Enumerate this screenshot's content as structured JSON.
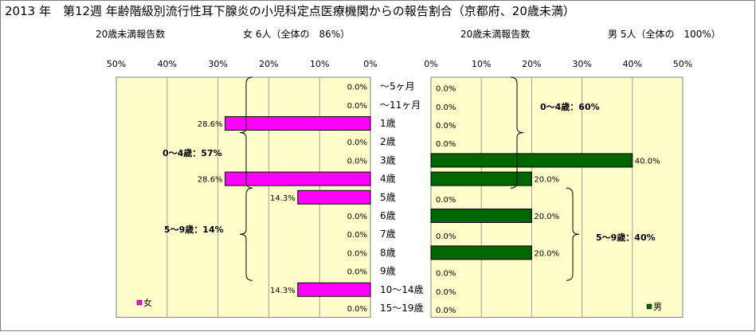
{
  "title": "2013 年　第12週 年齢階級別流行性耳下腺炎の小児科定点医療機関からの報告割合（京都府、20歳未満）",
  "subtitles": {
    "left_label": "20歳未満報告数",
    "left_value": "女 6人（全体の　86%）",
    "right_label": "20歳未満報告数",
    "right_value": "男 5人（全体の　100%）"
  },
  "colors": {
    "female": "#ff00ff",
    "male": "#006600",
    "plot_bg": "#ffffcc",
    "bar_edge": "#000000"
  },
  "chart_data": [
    {
      "type": "bar",
      "orientation": "horizontal-reversed",
      "categories": [
        "～5ヶ月",
        "～11ヶ月",
        "1歳",
        "2歳",
        "3歳",
        "4歳",
        "5歳",
        "6歳",
        "7歳",
        "8歳",
        "9歳",
        "10～14歳",
        "15～19歳"
      ],
      "series": [
        {
          "name": "女",
          "values": [
            0.0,
            0.0,
            28.6,
            0.0,
            0.0,
            28.6,
            14.3,
            0.0,
            0.0,
            0.0,
            0.0,
            14.3,
            0.0
          ]
        }
      ],
      "data_labels": [
        "0.0%",
        "0.0%",
        "28.6%",
        "0.0%",
        "0.0%",
        "28.6%",
        "14.3%",
        "0.0%",
        "0.0%",
        "0.0%",
        "0.0%",
        "14.3%",
        "0.0%"
      ],
      "xlim": [
        0,
        50
      ],
      "xticks": [
        "50%",
        "40%",
        "30%",
        "20%",
        "10%",
        "0%"
      ],
      "legend": "bottom-left",
      "annotations": [
        "0～4歳：57%",
        "5～9歳：14%"
      ]
    },
    {
      "type": "bar",
      "orientation": "horizontal",
      "categories": [
        "～5ヶ月",
        "～11ヶ月",
        "1歳",
        "2歳",
        "3歳",
        "4歳",
        "5歳",
        "6歳",
        "7歳",
        "8歳",
        "9歳",
        "10～14歳",
        "15～19歳"
      ],
      "series": [
        {
          "name": "男",
          "values": [
            0.0,
            0.0,
            0.0,
            0.0,
            40.0,
            20.0,
            0.0,
            20.0,
            0.0,
            20.0,
            0.0,
            0.0,
            0.0
          ]
        }
      ],
      "data_labels": [
        "0.0%",
        "0.0%",
        "0.0%",
        "0.0%",
        "40.0%",
        "20.0%",
        "0.0%",
        "20.0%",
        "0.0%",
        "20.0%",
        "0.0%",
        "0.0%",
        "0.0%"
      ],
      "xlim": [
        0,
        50
      ],
      "xticks": [
        "0%",
        "10%",
        "20%",
        "30%",
        "40%",
        "50%"
      ],
      "legend": "bottom-right",
      "annotations": [
        "0～4歳：60%",
        "5～9歳：40%"
      ]
    }
  ]
}
